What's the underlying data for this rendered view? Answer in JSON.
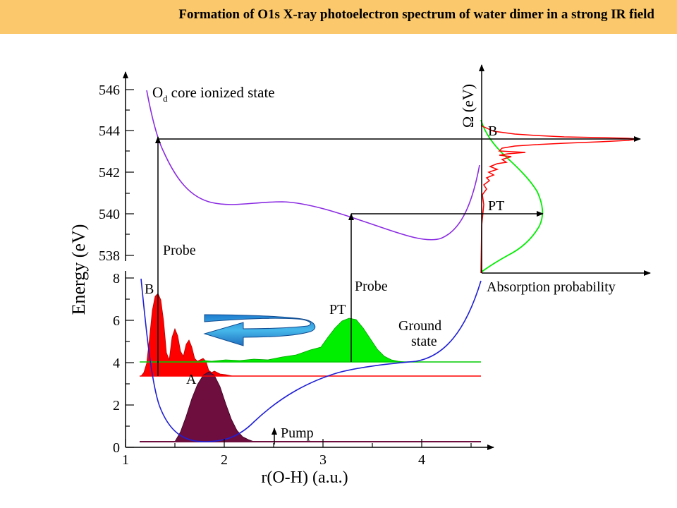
{
  "header": {
    "title": "Formation of O1s X-ray photoelectron spectrum of water dimer in a strong IR field"
  },
  "chart_data": {
    "type": "diagram",
    "xlabel": "r(O-H) (a.u.)",
    "ylabel": "Energy (eV)",
    "x_ticks": [
      "1",
      "2",
      "3",
      "4"
    ],
    "y_ticks_lower": [
      "0",
      "2",
      "4",
      "6",
      "8"
    ],
    "y_ticks_upper": [
      "538",
      "540",
      "542",
      "544",
      "546"
    ],
    "xlim": [
      1,
      4.6
    ],
    "ylim_lower": [
      0,
      8
    ],
    "ylim_upper": [
      537.5,
      546.5
    ],
    "colors": {
      "core_ionized": "#8a2be2",
      "ground_state": "#1f1fd6",
      "wavepacket_B": "#ff0000",
      "wavepacket_PT": "#00ee00",
      "wavepacket_A": "#6e0e3e",
      "arrow_blue": "#29a9e0"
    },
    "labels": {
      "core_state_main": "O",
      "core_state_sub": "d",
      "core_state_rest": "core ionized state",
      "ground_line1": "Ground",
      "ground_line2": "state",
      "probe_left": "Probe",
      "probe_right": "Probe",
      "B_left": "B",
      "PT_mid": "PT",
      "A": "A",
      "pump": "Pump",
      "B_right": "B",
      "PT_right": "PT",
      "omega_axis": "Ω (eV)",
      "absorption_axis": "Absorption probability"
    },
    "probe_transitions": [
      {
        "name": "B",
        "r": 1.33,
        "from_energy": 3.4,
        "to_energy": 543.6
      },
      {
        "name": "PT",
        "r": 3.28,
        "from_energy": 4.1,
        "to_energy": 540.0
      }
    ],
    "pump_r": 2.5
  }
}
